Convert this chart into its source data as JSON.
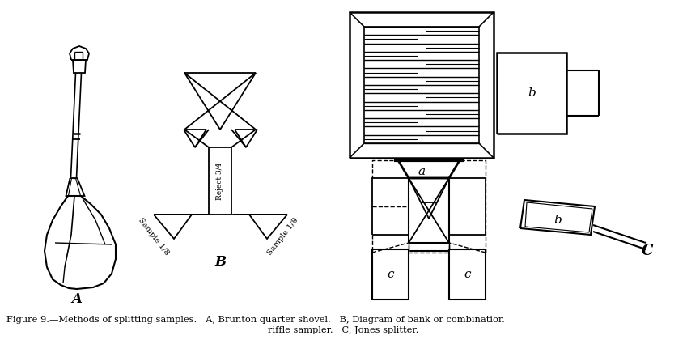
{
  "bg_color": "#ffffff",
  "line_color": "#000000",
  "fig_width": 8.49,
  "fig_height": 4.2,
  "dpi": 100,
  "caption_line1": "Figure 9.—Methods of splitting samples.   A, Brunton quarter shovel.   B, Diagram of bank or combination",
  "caption_line2": "riffle sampler.   C, Jones splitter.",
  "label_A": "A",
  "label_B": "B",
  "label_C": "C",
  "label_a": "a",
  "label_b_top": "b",
  "label_b_bottom": "b",
  "label_c_left": "c",
  "label_c_right": "c",
  "label_sample_left": "Sample 1/8",
  "label_sample_right": "Sample 1/8",
  "label_reject": "Reject 3/4"
}
